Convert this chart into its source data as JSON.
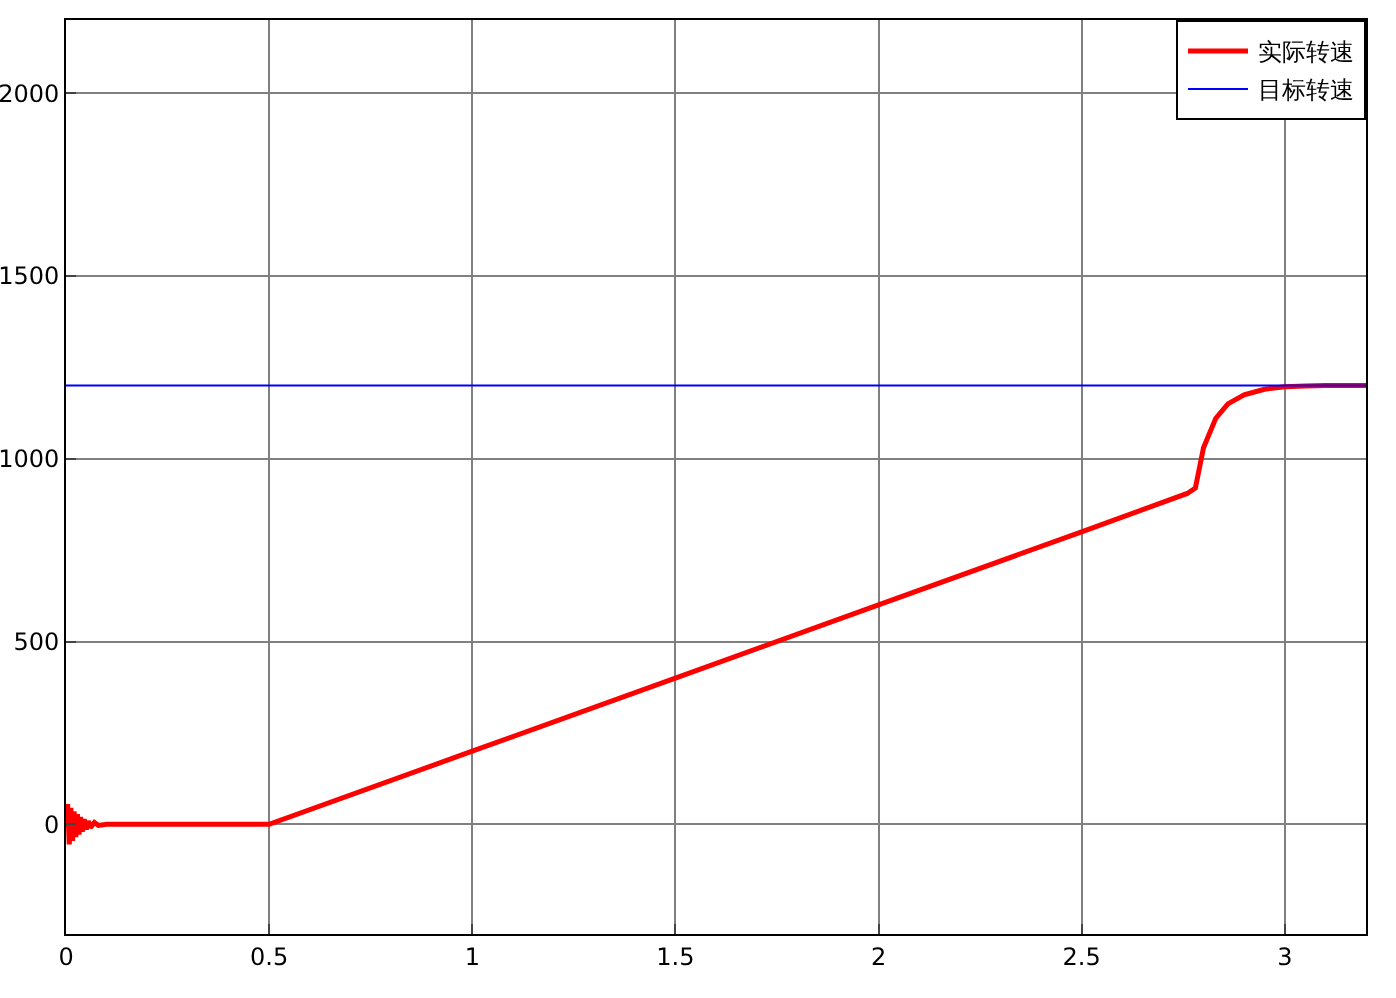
{
  "chart_data": {
    "type": "line",
    "xlim": [
      0,
      3.2
    ],
    "ylim": [
      -300,
      2200
    ],
    "xticks": [
      0,
      0.5,
      1,
      1.5,
      2,
      2.5,
      3
    ],
    "yticks": [
      0,
      500,
      1000,
      1500,
      2000
    ],
    "grid": true,
    "legend": "top right",
    "series": [
      {
        "name": "实际转速",
        "color": "#ff0000",
        "x": [
          0,
          0.004,
          0.008,
          0.012,
          0.016,
          0.02,
          0.024,
          0.028,
          0.032,
          0.036,
          0.04,
          0.045,
          0.05,
          0.055,
          0.06,
          0.07,
          0.08,
          0.1,
          0.5,
          1,
          1.5,
          2,
          2.5,
          2.76,
          2.78,
          2.8,
          2.83,
          2.86,
          2.9,
          2.95,
          3.0,
          3.05,
          3.1,
          3.2
        ],
        "values": [
          0,
          55,
          -55,
          45,
          -45,
          35,
          -35,
          28,
          -28,
          20,
          -20,
          14,
          -14,
          9,
          -9,
          5,
          -3,
          0,
          0,
          200,
          400,
          600,
          800,
          905,
          920,
          1030,
          1110,
          1150,
          1175,
          1190,
          1197,
          1199,
          1200,
          1200
        ]
      },
      {
        "name": "目标转速",
        "color": "#0000ff",
        "x": [
          0,
          3.2
        ],
        "values": [
          1200,
          1200
        ]
      }
    ]
  }
}
